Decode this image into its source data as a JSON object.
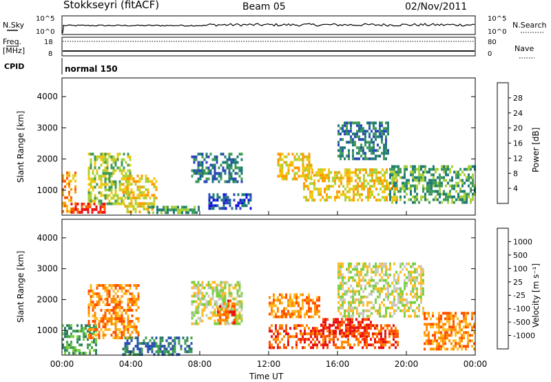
{
  "header": {
    "station": "Stokkseyri (fitACF)",
    "beam": "Beam 05",
    "date": "02/Nov/2011"
  },
  "summary_panels": {
    "nsky_label": "N.Sky",
    "nsky_ticks": [
      "10^5",
      "10^0"
    ],
    "nsearch_label": "N.Search",
    "nsearch_ticks": [
      "10^5",
      "10^0"
    ],
    "freq_label": "Freq.",
    "freq_unit": "[MHz]",
    "freq_ticks": [
      "18",
      "8"
    ],
    "nave_label": "Nave",
    "nave_ticks": [
      "80",
      "0"
    ],
    "cpid_label": "CPID",
    "cpid_value": "normal 150"
  },
  "colors": {
    "power_scale": [
      "#1010e0",
      "#2a48b8",
      "#1f7a78",
      "#3f9a57",
      "#a8d13a",
      "#f0c810",
      "#ff9a00",
      "#ff5a00",
      "#ee1010"
    ],
    "velocity_scale": [
      "#1818c8",
      "#2a4fb0",
      "#2d7a6a",
      "#3fa050",
      "#7ad040",
      "#c8c8c0",
      "#ffbb20",
      "#ff8c00",
      "#ff5000",
      "#e81010"
    ]
  },
  "chart_data": [
    {
      "type": "heatmap",
      "title": "Power",
      "ylabel": "Slant Range [km]",
      "yticks": [
        "1000",
        "2000",
        "3000",
        "4000"
      ],
      "ylim": [
        200,
        4600
      ],
      "xlim": [
        0,
        24
      ],
      "xticks": [
        "00:00",
        "04:00",
        "08:00",
        "12:00",
        "16:00",
        "20:00",
        "00:00"
      ],
      "colorbar_label": "Power [dB]",
      "colorbar_ticks": [
        "4",
        "8",
        "12",
        "16",
        "20",
        "24",
        "28"
      ],
      "echo_regions": [
        {
          "t": [
            0.0,
            0.8
          ],
          "r": [
            300,
            1600
          ],
          "level": 6
        },
        {
          "t": [
            0.5,
            2.5
          ],
          "r": [
            250,
            600
          ],
          "level": 8
        },
        {
          "t": [
            1.5,
            4.0
          ],
          "r": [
            600,
            2200
          ],
          "level": 4
        },
        {
          "t": [
            3.5,
            5.5
          ],
          "r": [
            300,
            1500
          ],
          "level": 5
        },
        {
          "t": [
            5.0,
            8.0
          ],
          "r": [
            250,
            500
          ],
          "level": 3
        },
        {
          "t": [
            7.5,
            10.5
          ],
          "r": [
            1300,
            2200
          ],
          "level": 2
        },
        {
          "t": [
            8.5,
            11.0
          ],
          "r": [
            400,
            900
          ],
          "level": 1
        },
        {
          "t": [
            12.5,
            14.5
          ],
          "r": [
            1400,
            2200
          ],
          "level": 5
        },
        {
          "t": [
            14.0,
            19.5
          ],
          "r": [
            700,
            1700
          ],
          "level": 5
        },
        {
          "t": [
            16.0,
            19.0
          ],
          "r": [
            2000,
            3200
          ],
          "level": 2
        },
        {
          "t": [
            19.0,
            24.0
          ],
          "r": [
            600,
            1800
          ],
          "level": 3
        }
      ]
    },
    {
      "type": "heatmap",
      "title": "Velocity",
      "ylabel": "Slant Range [km]",
      "yticks": [
        "1000",
        "2000",
        "3000",
        "4000"
      ],
      "ylim": [
        200,
        4600
      ],
      "xlim": [
        0,
        24
      ],
      "xticks": [
        "00:00",
        "04:00",
        "08:00",
        "12:00",
        "16:00",
        "20:00",
        "00:00"
      ],
      "xlabel": "Time UT",
      "colorbar_label": "Velocity [m s⁻¹]",
      "colorbar_ticks": [
        "1000",
        "500",
        "100",
        "25",
        "-25",
        "-100",
        "-500",
        "-1000"
      ],
      "echo_regions": [
        {
          "t": [
            0.0,
            2.0
          ],
          "r": [
            250,
            1200
          ],
          "level": 3
        },
        {
          "t": [
            1.5,
            4.5
          ],
          "r": [
            800,
            2500
          ],
          "level": 7
        },
        {
          "t": [
            3.5,
            7.5
          ],
          "r": [
            250,
            800
          ],
          "level": 2
        },
        {
          "t": [
            7.5,
            10.5
          ],
          "r": [
            1200,
            2600
          ],
          "level": 5
        },
        {
          "t": [
            9.0,
            10.0
          ],
          "r": [
            1200,
            2000
          ],
          "level": 8
        },
        {
          "t": [
            12.0,
            15.0
          ],
          "r": [
            1400,
            2200
          ],
          "level": 7
        },
        {
          "t": [
            12.0,
            19.5
          ],
          "r": [
            400,
            1200
          ],
          "level": 8
        },
        {
          "t": [
            15.0,
            18.0
          ],
          "r": [
            800,
            1400
          ],
          "level": 9
        },
        {
          "t": [
            16.0,
            21.0
          ],
          "r": [
            1500,
            3200
          ],
          "level": 5
        },
        {
          "t": [
            21.0,
            24.0
          ],
          "r": [
            400,
            1600
          ],
          "level": 7
        }
      ]
    }
  ]
}
